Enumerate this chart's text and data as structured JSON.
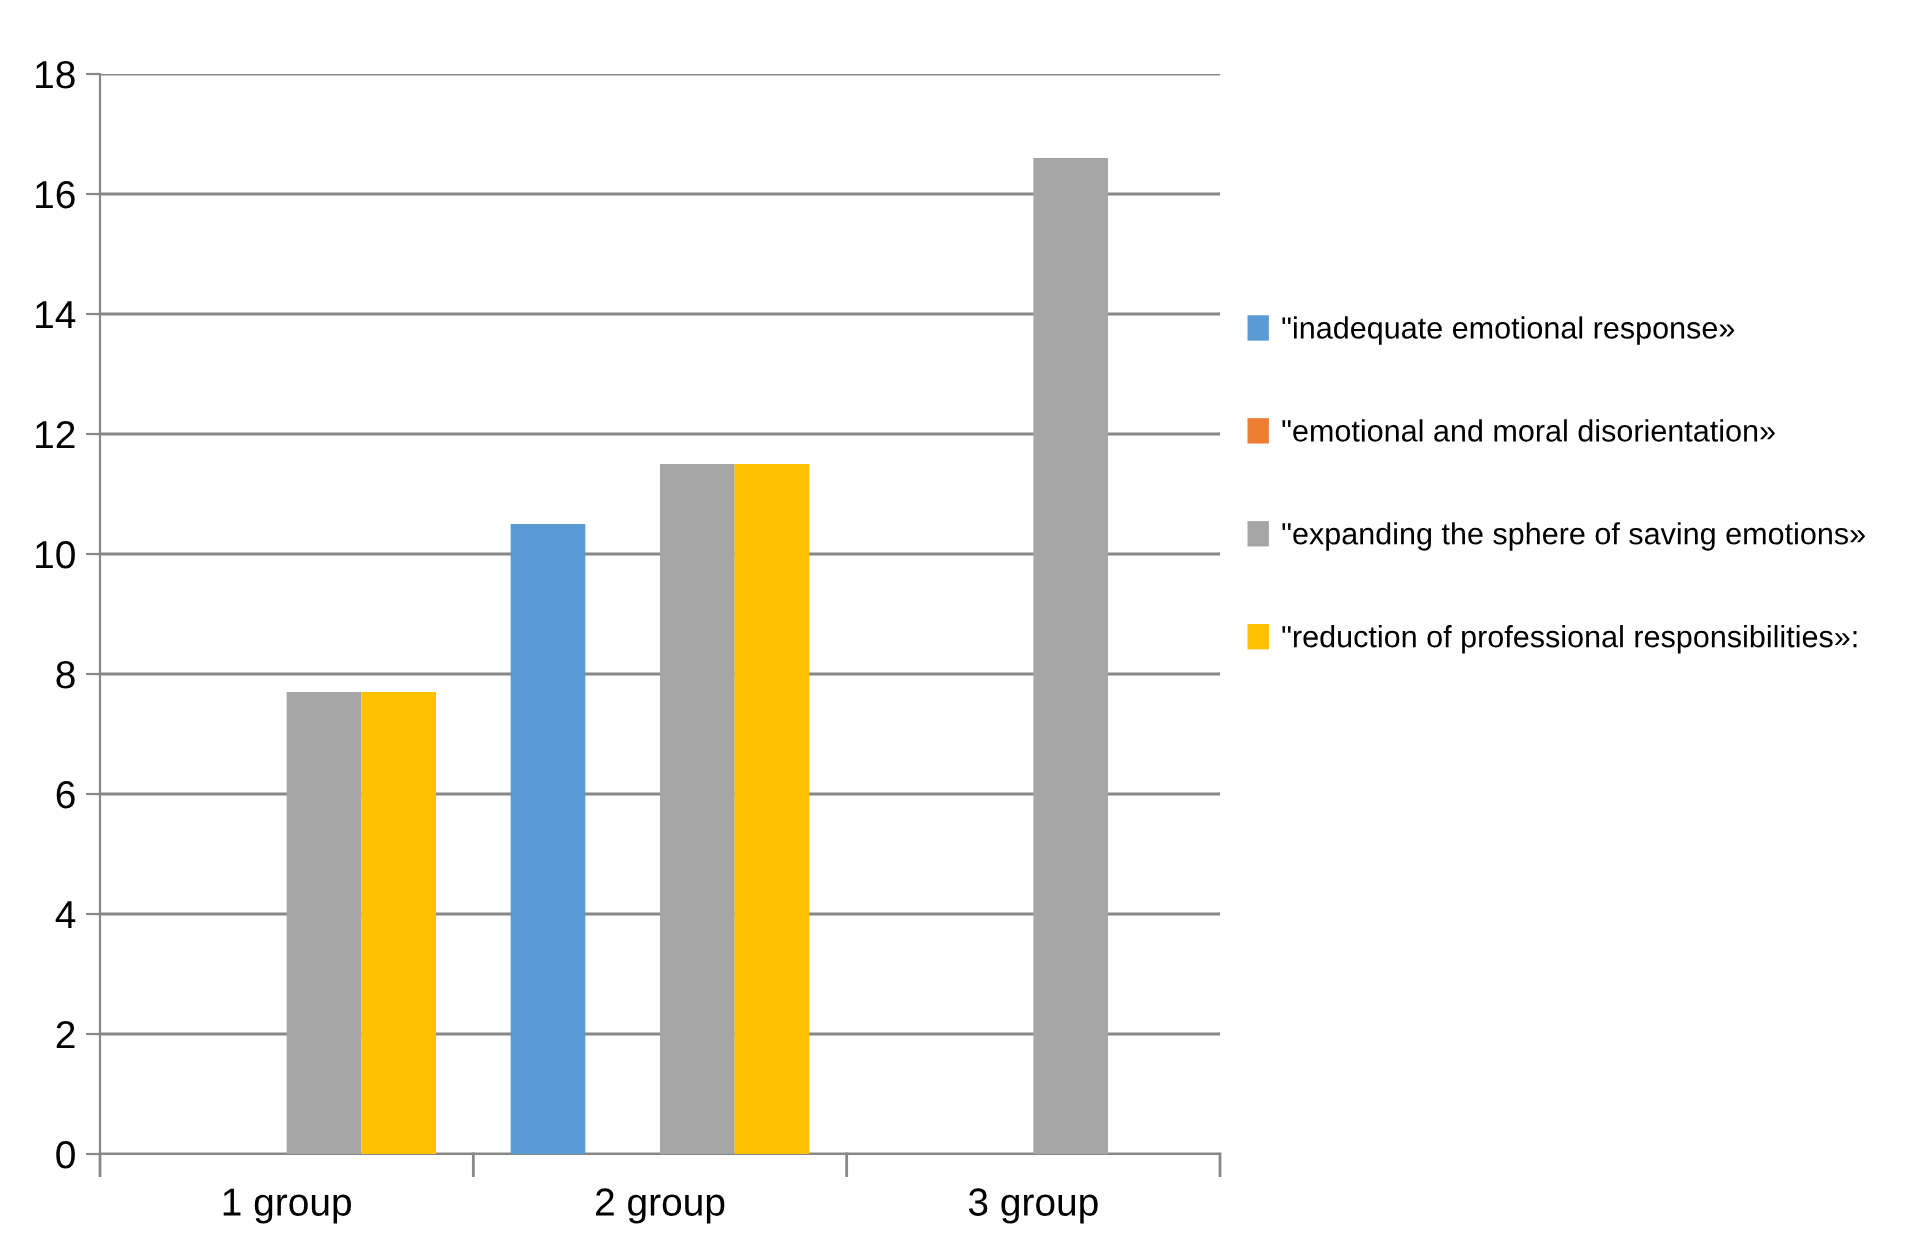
{
  "chart_data": {
    "type": "bar",
    "categories": [
      "1 group",
      "2 group",
      "3 group"
    ],
    "series": [
      {
        "name": "\"inadequate emotional response»",
        "color": "#5b9bd5",
        "values": [
          0,
          10.5,
          0
        ]
      },
      {
        "name": "\"emotional and moral disorientation»",
        "color": "#ed7d31",
        "values": [
          0,
          0,
          0
        ]
      },
      {
        "name": "\"expanding the sphere of saving emotions»",
        "color": "#a5a5a5",
        "values": [
          7.7,
          11.5,
          16.6
        ]
      },
      {
        "name": "\"reduction of professional responsibilities»:",
        "color": "#ffc000",
        "values": [
          7.7,
          11.5,
          0
        ]
      }
    ],
    "ylim": [
      0,
      18
    ],
    "yticks": [
      0,
      2,
      4,
      6,
      8,
      10,
      12,
      14,
      16,
      18
    ],
    "grid": "y",
    "legend": "right"
  }
}
